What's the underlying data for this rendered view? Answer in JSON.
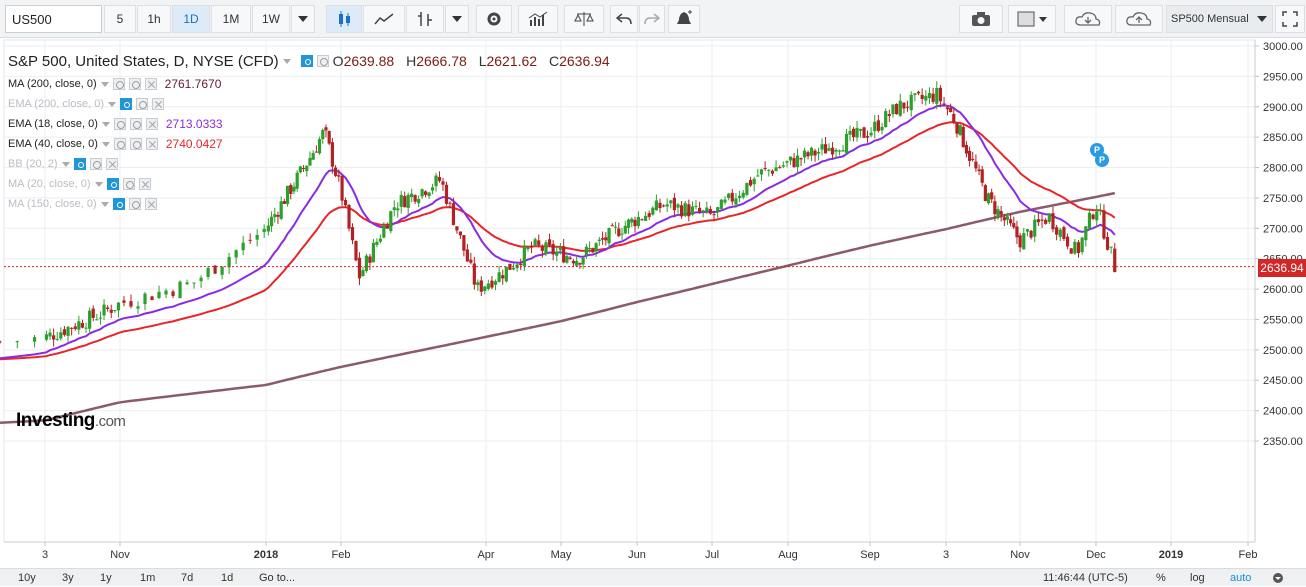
{
  "toolbar": {
    "symbol": "US500",
    "intervals": [
      "5",
      "1h",
      "1D",
      "1M",
      "1W"
    ],
    "active_interval": "1D",
    "template_label": "SP500 Mensual",
    "icons": [
      "interval-dropdown-icon",
      "candle-icon",
      "line-style-icon",
      "bar-style-icon",
      "style-dropdown-icon",
      "settings-icon",
      "indicators-icon",
      "compare-icon",
      "undo-icon",
      "redo-icon",
      "alert-icon",
      "camera-icon",
      "square-icon",
      "cloud-download-icon",
      "cloud-upload-icon",
      "fullscreen-icon"
    ]
  },
  "legend": {
    "title": "S&P 500, United States, D, NYSE (CFD)",
    "ohlc": [
      {
        "k": "O",
        "v": "2639.88"
      },
      {
        "k": "H",
        "v": "2666.78"
      },
      {
        "k": "L",
        "v": "2621.62"
      },
      {
        "k": "C",
        "v": "2636.94"
      }
    ],
    "indicators": [
      {
        "label": "MA (200, close, 0)",
        "value": "2761.7670",
        "color": "#6b1a2e",
        "visible": true
      },
      {
        "label": "EMA (200, close, 0)",
        "value": "",
        "color": "",
        "visible": false
      },
      {
        "label": "EMA (18, close, 0)",
        "value": "2713.0333",
        "color": "#8a2be2",
        "visible": true
      },
      {
        "label": "EMA (40, close, 0)",
        "value": "2740.0427",
        "color": "#e8262a",
        "visible": true
      },
      {
        "label": "BB (20, 2)",
        "value": "",
        "color": "",
        "visible": false
      },
      {
        "label": "MA (20, close, 0)",
        "value": "",
        "color": "",
        "visible": false
      },
      {
        "label": "MA (150, close, 0)",
        "value": "",
        "color": "",
        "visible": false
      }
    ]
  },
  "last_price": "2636.94",
  "logo": {
    "main": "Investing",
    "suffix": ".com"
  },
  "markers": [
    "P",
    "P"
  ],
  "bottom": {
    "ranges": [
      "10y",
      "3y",
      "1y",
      "1m",
      "7d",
      "1d"
    ],
    "goto": "Go to...",
    "time": "11:46:44 (UTC-5)",
    "pct": "%",
    "log": "log",
    "auto": "auto"
  },
  "chart_data": {
    "type": "candlestick",
    "title": "S&P 500, United States, D, NYSE (CFD)",
    "y_ticks": [
      "3000.00",
      "2950.00",
      "2900.00",
      "2850.00",
      "2800.00",
      "2750.00",
      "2700.00",
      "2650.00",
      "2600.00",
      "2550.00",
      "2500.00",
      "2450.00",
      "2400.00",
      "2350.00"
    ],
    "ylim": [
      2350,
      3000
    ],
    "x_ticks": [
      "3",
      "Nov",
      "2018",
      "Feb",
      "Apr",
      "May",
      "Jun",
      "Jul",
      "Aug",
      "Sep",
      "3",
      "Nov",
      "Dec",
      "2019",
      "Feb"
    ],
    "colors": {
      "up": "#2ca02c",
      "down": "#b22222",
      "ma200": "#8b5a6b",
      "ema18": "#8a2be2",
      "ema40": "#e8262a",
      "last": "#d32626"
    },
    "close_path": [
      [
        2017.84,
        2520
      ],
      [
        2017.9,
        2560
      ],
      [
        2017.96,
        2610
      ],
      [
        2018.0,
        2700
      ],
      [
        2018.05,
        2810
      ],
      [
        2018.07,
        2860
      ],
      [
        2018.09,
        2760
      ],
      [
        2018.11,
        2620
      ],
      [
        2018.15,
        2740
      ],
      [
        2018.2,
        2780
      ],
      [
        2018.24,
        2600
      ],
      [
        2018.27,
        2630
      ],
      [
        2018.3,
        2670
      ],
      [
        2018.35,
        2650
      ],
      [
        2018.4,
        2700
      ],
      [
        2018.45,
        2740
      ],
      [
        2018.5,
        2720
      ],
      [
        2018.55,
        2790
      ],
      [
        2018.62,
        2830
      ],
      [
        2018.67,
        2860
      ],
      [
        2018.7,
        2900
      ],
      [
        2018.74,
        2920
      ],
      [
        2018.76,
        2880
      ],
      [
        2018.8,
        2750
      ],
      [
        2018.84,
        2680
      ],
      [
        2018.87,
        2720
      ],
      [
        2018.9,
        2660
      ],
      [
        2018.92,
        2740
      ],
      [
        2018.94,
        2637
      ]
    ]
  }
}
